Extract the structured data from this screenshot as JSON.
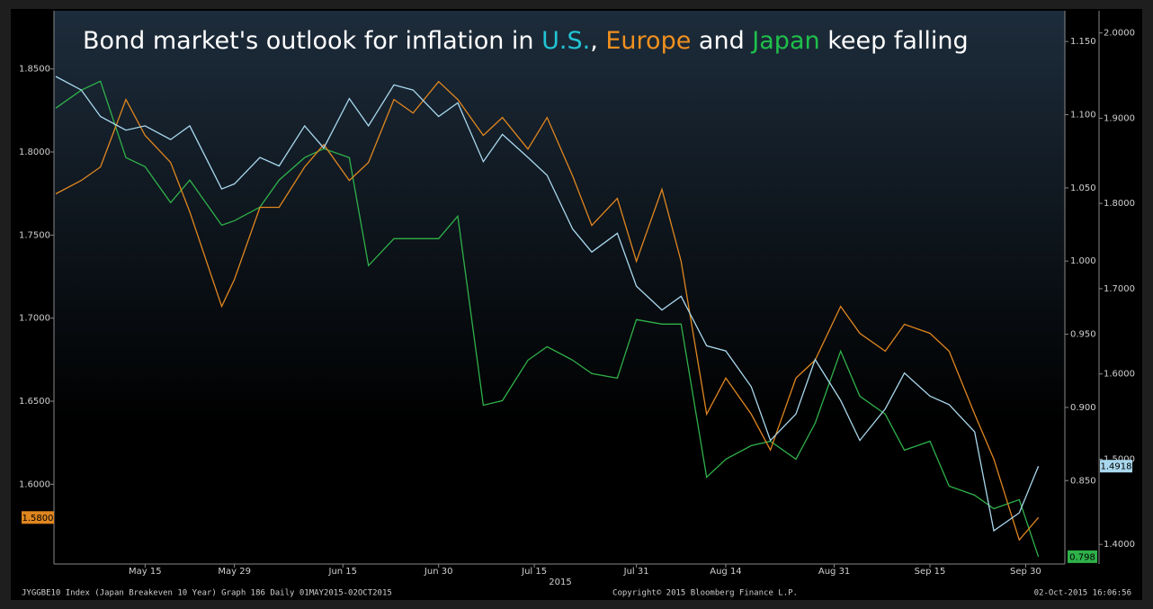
{
  "chart_data": {
    "type": "line",
    "title_parts": [
      "Bond market's outlook for inflation in ",
      ", ",
      " and ",
      " keep falling"
    ],
    "x": [
      "2015-05-01",
      "2015-05-05",
      "2015-05-08",
      "2015-05-12",
      "2015-05-15",
      "2015-05-19",
      "2015-05-22",
      "2015-05-27",
      "2015-05-29",
      "2015-06-02",
      "2015-06-05",
      "2015-06-09",
      "2015-06-12",
      "2015-06-16",
      "2015-06-19",
      "2015-06-23",
      "2015-06-26",
      "2015-06-30",
      "2015-07-03",
      "2015-07-07",
      "2015-07-10",
      "2015-07-14",
      "2015-07-17",
      "2015-07-21",
      "2015-07-24",
      "2015-07-28",
      "2015-07-31",
      "2015-08-04",
      "2015-08-07",
      "2015-08-11",
      "2015-08-14",
      "2015-08-18",
      "2015-08-21",
      "2015-08-25",
      "2015-08-28",
      "2015-09-01",
      "2015-09-04",
      "2015-09-08",
      "2015-09-11",
      "2015-09-15",
      "2015-09-18",
      "2015-09-22",
      "2015-09-25",
      "2015-09-29",
      "2015-10-02"
    ],
    "xlim": [
      "2015-05-01",
      "2015-10-06"
    ],
    "xticks": [
      {
        "value": "2015-05-15",
        "label": "May 15"
      },
      {
        "value": "2015-05-29",
        "label": "May 29"
      },
      {
        "value": "2015-06-15",
        "label": "Jun 15"
      },
      {
        "value": "2015-06-30",
        "label": "Jun 30"
      },
      {
        "value": "2015-07-15",
        "label": "Jul 15"
      },
      {
        "value": "2015-07-31",
        "label": "Jul 31"
      },
      {
        "value": "2015-08-14",
        "label": "Aug 14"
      },
      {
        "value": "2015-08-31",
        "label": "Aug 31"
      },
      {
        "value": "2015-09-15",
        "label": "Sep 15"
      },
      {
        "value": "2015-09-30",
        "label": "Sep 30"
      }
    ],
    "x_year_label": "2015",
    "ylim": [
      1.552,
      1.885
    ],
    "yticks": [
      {
        "value": 1.6,
        "label": "1.6000"
      },
      {
        "value": 1.65,
        "label": "1.6500"
      },
      {
        "value": 1.7,
        "label": "1.7000"
      },
      {
        "value": 1.75,
        "label": "1.7500"
      },
      {
        "value": 1.8,
        "label": "1.8000"
      },
      {
        "value": 1.85,
        "label": "1.8500"
      }
    ],
    "y2lim": [
      0.793,
      1.171
    ],
    "y2ticks": [
      {
        "value": 0.85,
        "label": "0.850"
      },
      {
        "value": 0.9,
        "label": "0.900"
      },
      {
        "value": 0.95,
        "label": "0.950"
      },
      {
        "value": 1.0,
        "label": "1.000"
      },
      {
        "value": 1.05,
        "label": "1.050"
      },
      {
        "value": 1.1,
        "label": "1.100"
      },
      {
        "value": 1.15,
        "label": "1.150"
      }
    ],
    "y3lim": [
      1.377,
      2.026
    ],
    "y3ticks": [
      {
        "value": 1.4,
        "label": "1.4000"
      },
      {
        "value": 1.5,
        "label": "1.5000"
      },
      {
        "value": 1.6,
        "label": "1.6000"
      },
      {
        "value": 1.7,
        "label": "1.7000"
      },
      {
        "value": 1.8,
        "label": "1.8000"
      },
      {
        "value": 1.9,
        "label": "1.9000"
      },
      {
        "value": 2.0,
        "label": "2.0000"
      }
    ],
    "series": [
      {
        "name": "U.S.",
        "color": "#a9d8ee",
        "title_color": "#22c4d4",
        "axis": "y3",
        "last_label": "1.4918",
        "values": [
          1.949,
          1.933,
          1.902,
          1.886,
          1.891,
          1.875,
          1.891,
          1.817,
          1.823,
          1.854,
          1.844,
          1.891,
          1.865,
          1.923,
          1.891,
          1.939,
          1.933,
          1.902,
          1.918,
          1.849,
          1.881,
          1.854,
          1.833,
          1.77,
          1.743,
          1.765,
          1.703,
          1.675,
          1.691,
          1.633,
          1.627,
          1.585,
          1.522,
          1.553,
          1.617,
          1.569,
          1.522,
          1.559,
          1.601,
          1.574,
          1.564,
          1.532,
          1.416,
          1.437,
          1.4918
        ]
      },
      {
        "name": "Europe",
        "color": "#e0861f",
        "title_color": "#f0901e",
        "axis": "y",
        "last_label": "1.5800",
        "values": [
          1.7748,
          1.7829,
          1.791,
          1.8316,
          1.81,
          1.7937,
          1.764,
          1.7071,
          1.7234,
          1.7667,
          1.7667,
          1.791,
          1.8045,
          1.7829,
          1.7937,
          1.8316,
          1.8235,
          1.8424,
          1.8316,
          1.81,
          1.8208,
          1.8018,
          1.8208,
          1.7856,
          1.7558,
          1.7721,
          1.7342,
          1.7775,
          1.7342,
          1.6422,
          1.6639,
          1.6422,
          1.6206,
          1.6639,
          1.6747,
          1.7071,
          1.6909,
          1.6801,
          1.6963,
          1.6909,
          1.6801,
          1.6422,
          1.6152,
          1.5665,
          1.58
        ]
      },
      {
        "name": "Japan",
        "color": "#2fb14a",
        "title_color": "#1fc04a",
        "axis": "y2",
        "last_label": "0.798",
        "values": [
          1.1045,
          1.1168,
          1.1229,
          1.0707,
          1.0645,
          1.0399,
          1.0553,
          1.0245,
          1.0276,
          1.0368,
          1.0553,
          1.0707,
          1.0768,
          1.0707,
          0.9969,
          1.0153,
          1.0153,
          1.0153,
          1.0307,
          0.9015,
          0.9046,
          0.9323,
          0.9415,
          0.9323,
          0.9231,
          0.92,
          0.96,
          0.9569,
          0.9569,
          0.8523,
          0.8646,
          0.8739,
          0.8769,
          0.8646,
          0.8892,
          0.9384,
          0.9077,
          0.8954,
          0.8708,
          0.8769,
          0.8462,
          0.84,
          0.8308,
          0.837,
          0.798
        ]
      }
    ],
    "footer_left": "JYGGBE10 Index (Japan Breakeven 10 Year) Graph 186  Daily 01MAY2015-02OCT2015",
    "footer_center": "Copyright© 2015 Bloomberg Finance L.P.",
    "footer_right": "02-Oct-2015 16:06:56"
  }
}
